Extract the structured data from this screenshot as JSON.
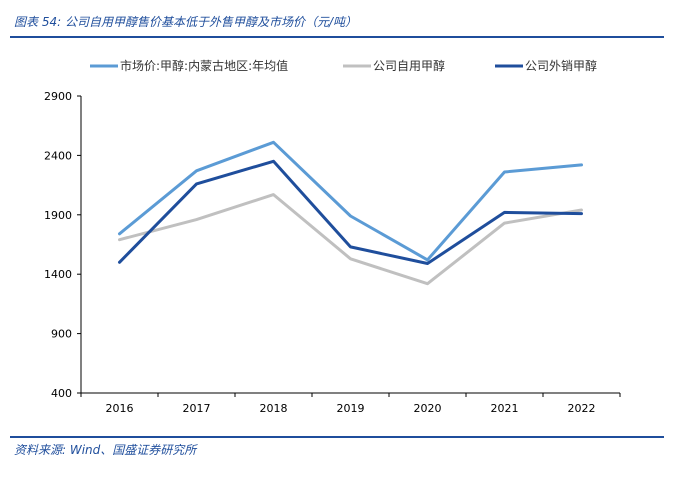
{
  "figure": {
    "title": "图表 54:  公司自用甲醇售价基本低于外售甲醇及市场价（元/吨）",
    "source": "资料来源:  Wind、国盛证券研究所"
  },
  "chart_data": {
    "type": "line",
    "x": [
      "2016",
      "2017",
      "2018",
      "2019",
      "2020",
      "2021",
      "2022"
    ],
    "ylim": [
      400,
      2900
    ],
    "yticks": [
      400,
      900,
      1400,
      1900,
      2400,
      2900
    ],
    "grid": false,
    "legend_position": "top",
    "series": [
      {
        "name": "市场价:甲醇:内蒙古地区:年均值",
        "color": "#5b9bd5",
        "values": [
          1740,
          2270,
          2510,
          1890,
          1520,
          2260,
          2320
        ]
      },
      {
        "name": "公司自用甲醇",
        "color": "#c0c0c0",
        "values": [
          1690,
          1860,
          2070,
          1530,
          1320,
          1830,
          1940
        ]
      },
      {
        "name": "公司外销甲醇",
        "color": "#1f4e9c",
        "values": [
          1500,
          2160,
          2350,
          1630,
          1490,
          1920,
          1910
        ]
      }
    ]
  }
}
